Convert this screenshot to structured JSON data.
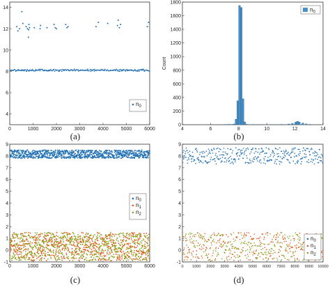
{
  "captions": {
    "a": "(a)",
    "b": "(b)",
    "c": "(c)",
    "d": "(d)"
  },
  "colors": {
    "n0": "#1f6fb5",
    "n1": "#e8571c",
    "n2": "#8aa81e",
    "bar": "#4a90c8",
    "bar_edge": "#2a5f8c"
  },
  "chart_data": [
    {
      "id": "a",
      "type": "scatter",
      "xlim": [
        0,
        6000
      ],
      "ylim": [
        3,
        14.5
      ],
      "xticks": [
        0,
        1000,
        2000,
        3000,
        4000,
        5000,
        6000
      ],
      "yticks": [
        4,
        6,
        8,
        10,
        12,
        14
      ],
      "legend": [
        "n0"
      ],
      "legend_position": "center-right",
      "series": [
        {
          "name": "n0",
          "band_center": 8.1,
          "band_spread": 0.12,
          "n_points": 200,
          "outliers": [
            [
              300,
              12.2
            ],
            [
              350,
              11.8
            ],
            [
              420,
              12.0
            ],
            [
              520,
              13.6
            ],
            [
              560,
              12.5
            ],
            [
              700,
              12.2
            ],
            [
              760,
              12.0
            ],
            [
              800,
              11.2
            ],
            [
              810,
              11.9
            ],
            [
              820,
              12.4
            ],
            [
              850,
              12.1
            ],
            [
              1050,
              12.1
            ],
            [
              1300,
              12.0
            ],
            [
              1320,
              12.3
            ],
            [
              1600,
              12.1
            ],
            [
              1900,
              12.4
            ],
            [
              1950,
              12.1
            ],
            [
              2000,
              12.0
            ],
            [
              2400,
              12.4
            ],
            [
              2450,
              12.1
            ],
            [
              2500,
              12.2
            ],
            [
              3700,
              12.2
            ],
            [
              3800,
              12.6
            ],
            [
              4200,
              12.5
            ],
            [
              4620,
              12.3
            ],
            [
              4650,
              12.8
            ],
            [
              4700,
              12.1
            ],
            [
              4750,
              12.4
            ],
            [
              5900,
              12.2
            ],
            [
              5950,
              12.6
            ]
          ]
        }
      ]
    },
    {
      "id": "b",
      "type": "bar",
      "title": "",
      "xlabel": "",
      "ylabel": "Count",
      "xlim": [
        4,
        14
      ],
      "ylim": [
        0,
        1800
      ],
      "xticks": [
        4,
        6,
        8,
        10,
        12,
        14
      ],
      "yticks": [
        0,
        200,
        400,
        600,
        800,
        1000,
        1200,
        1400,
        1600,
        1800
      ],
      "legend": [
        "n0"
      ],
      "legend_position": "top-right",
      "bin_width": 0.125,
      "bins": [
        [
          7.0,
          4
        ],
        [
          7.25,
          6
        ],
        [
          7.5,
          5
        ],
        [
          7.625,
          10
        ],
        [
          7.75,
          80
        ],
        [
          7.875,
          350
        ],
        [
          8.0,
          1750
        ],
        [
          8.125,
          1720
        ],
        [
          8.25,
          380
        ],
        [
          8.375,
          40
        ],
        [
          8.5,
          6
        ],
        [
          9.0,
          4
        ],
        [
          9.5,
          3
        ],
        [
          10.0,
          3
        ],
        [
          10.5,
          3
        ],
        [
          11.0,
          5
        ],
        [
          11.5,
          10
        ],
        [
          11.75,
          20
        ],
        [
          12.0,
          40
        ],
        [
          12.125,
          50
        ],
        [
          12.25,
          40
        ],
        [
          12.5,
          25
        ],
        [
          12.75,
          12
        ],
        [
          13.0,
          5
        ]
      ]
    },
    {
      "id": "c",
      "type": "scatter",
      "xlim": [
        0,
        6000
      ],
      "ylim": [
        -1,
        9
      ],
      "xticks": [
        0,
        1000,
        2000,
        3000,
        4000,
        5000,
        6000
      ],
      "yticks": [
        -1,
        0,
        1,
        2,
        3,
        4,
        5,
        6,
        7,
        8,
        9
      ],
      "legend": [
        "n0",
        "n1",
        "n2"
      ],
      "legend_position": "center-right",
      "series": [
        {
          "name": "n0",
          "band": [
            7.8,
            8.5
          ],
          "n_points": 900
        },
        {
          "name": "n1",
          "band": [
            -0.9,
            1.5
          ],
          "n_points": 650
        },
        {
          "name": "n2",
          "band": [
            -0.9,
            1.5
          ],
          "n_points": 650
        }
      ]
    },
    {
      "id": "d",
      "type": "scatter",
      "xlim": [
        0,
        10000
      ],
      "ylim": [
        -1,
        9
      ],
      "xticks": [
        0,
        1000,
        2000,
        3000,
        4000,
        5000,
        6000,
        7000,
        8000,
        9000,
        10000
      ],
      "yticks": [
        -1,
        0,
        1,
        2,
        3,
        4,
        5,
        6,
        7,
        8,
        9
      ],
      "legend": [
        "n0",
        "n1",
        "n2"
      ],
      "legend_position": "bottom-right",
      "series": [
        {
          "name": "n0",
          "band": [
            7.3,
            8.7
          ],
          "n_points": 380
        },
        {
          "name": "n1",
          "band": [
            -0.9,
            1.5
          ],
          "n_points": 280
        },
        {
          "name": "n2",
          "band": [
            -0.9,
            1.5
          ],
          "n_points": 280
        }
      ]
    }
  ]
}
